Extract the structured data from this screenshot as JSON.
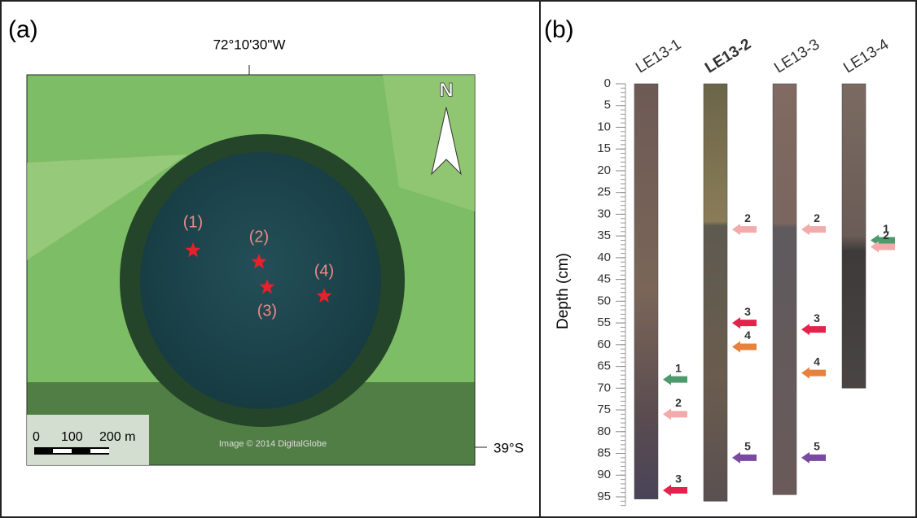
{
  "panel_a": {
    "label": "(a)",
    "longitude": "72°10'30\"W",
    "latitude": "39°S",
    "scale_bar": [
      "0",
      "100",
      "200 m"
    ],
    "north": "N",
    "credit": "Image © 2014 DigitalGlobe",
    "sites": [
      "(1)",
      "(2)",
      "(3)",
      "(4)"
    ]
  },
  "panel_b": {
    "label": "(b)",
    "y_axis_label": "Depth (cm)",
    "ylim": [
      0,
      95
    ],
    "yticks": [
      0,
      5,
      10,
      15,
      20,
      25,
      30,
      35,
      40,
      45,
      50,
      55,
      60,
      65,
      70,
      75,
      80,
      85,
      90,
      95
    ],
    "cores": [
      {
        "name": "LE13-1",
        "bold": false,
        "bottom": 95.5,
        "arrows": [
          {
            "label": "1",
            "depth": 68,
            "color": "#4d9a6c"
          },
          {
            "label": "2",
            "depth": 76,
            "color": "#f2aaaa"
          },
          {
            "label": "3",
            "depth": 93.5,
            "color": "#e5224c"
          }
        ]
      },
      {
        "name": "LE13-2",
        "bold": true,
        "bottom": 96,
        "arrows": [
          {
            "label": "2",
            "depth": 33.5,
            "color": "#f2aaaa"
          },
          {
            "label": "3",
            "depth": 55,
            "color": "#e5224c"
          },
          {
            "label": "4",
            "depth": 60.5,
            "color": "#e8803e"
          },
          {
            "label": "5",
            "depth": 86,
            "color": "#7a4aa0"
          }
        ]
      },
      {
        "name": "LE13-3",
        "bold": false,
        "bottom": 94.5,
        "arrows": [
          {
            "label": "2",
            "depth": 33.5,
            "color": "#f2aaaa"
          },
          {
            "label": "3",
            "depth": 56.5,
            "color": "#e5224c"
          },
          {
            "label": "4",
            "depth": 66.5,
            "color": "#e8803e"
          },
          {
            "label": "5",
            "depth": 86,
            "color": "#7a4aa0"
          }
        ]
      },
      {
        "name": "LE13-4",
        "bold": false,
        "bottom": 70,
        "arrows": [
          {
            "label": "1",
            "depth": 36,
            "color": "#4d9a6c"
          },
          {
            "label": "2",
            "depth": 37.5,
            "color": "#f2aaaa"
          }
        ]
      }
    ]
  }
}
